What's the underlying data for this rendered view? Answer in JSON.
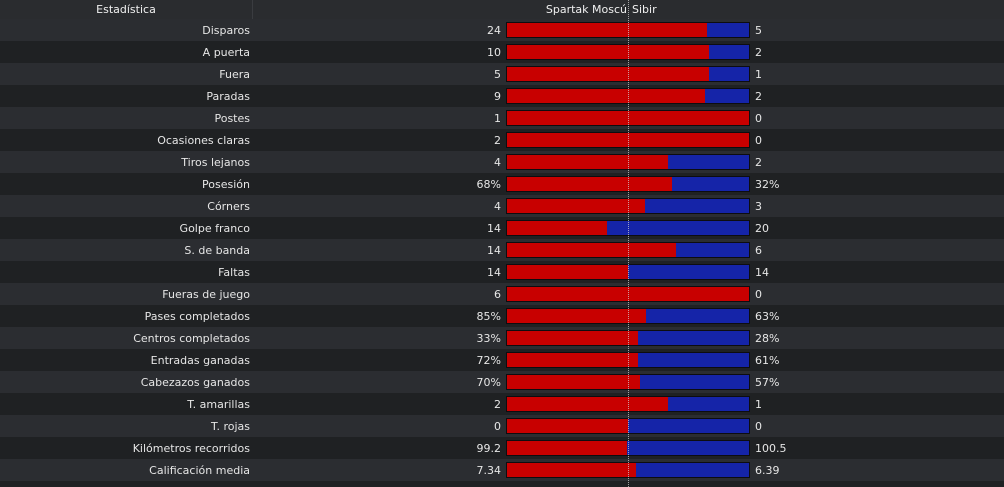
{
  "header": {
    "stat_label": "Estadística",
    "home_team": "Spartak Moscú",
    "away_team": "Sibir"
  },
  "colors": {
    "home": "#c80000",
    "away": "#1524a8"
  },
  "stats": [
    {
      "label": "Disparos",
      "home": "24",
      "away": "5",
      "home_share": 0.827
    },
    {
      "label": "A puerta",
      "home": "10",
      "away": "2",
      "home_share": 0.833
    },
    {
      "label": "Fuera",
      "home": "5",
      "away": "1",
      "home_share": 0.833
    },
    {
      "label": "Paradas",
      "home": "9",
      "away": "2",
      "home_share": 0.818
    },
    {
      "label": "Postes",
      "home": "1",
      "away": "0",
      "home_share": 1.0
    },
    {
      "label": "Ocasiones claras",
      "home": "2",
      "away": "0",
      "home_share": 1.0
    },
    {
      "label": "Tiros lejanos",
      "home": "4",
      "away": "2",
      "home_share": 0.667
    },
    {
      "label": "Posesión",
      "home": "68%",
      "away": "32%",
      "home_share": 0.68
    },
    {
      "label": "Córners",
      "home": "4",
      "away": "3",
      "home_share": 0.571
    },
    {
      "label": "Golpe franco",
      "home": "14",
      "away": "20",
      "home_share": 0.412
    },
    {
      "label": "S. de banda",
      "home": "14",
      "away": "6",
      "home_share": 0.7
    },
    {
      "label": "Faltas",
      "home": "14",
      "away": "14",
      "home_share": 0.5
    },
    {
      "label": "Fueras de juego",
      "home": "6",
      "away": "0",
      "home_share": 1.0
    },
    {
      "label": "Pases completados",
      "home": "85%",
      "away": "63%",
      "home_share": 0.574
    },
    {
      "label": "Centros completados",
      "home": "33%",
      "away": "28%",
      "home_share": 0.541
    },
    {
      "label": "Entradas ganadas",
      "home": "72%",
      "away": "61%",
      "home_share": 0.541
    },
    {
      "label": "Cabezazos ganados",
      "home": "70%",
      "away": "57%",
      "home_share": 0.551
    },
    {
      "label": "T. amarillas",
      "home": "2",
      "away": "1",
      "home_share": 0.667
    },
    {
      "label": "T. rojas",
      "home": "0",
      "away": "0",
      "home_share": 0.5
    },
    {
      "label": "Kilómetros recorridos",
      "home": "99.2",
      "away": "100.5",
      "home_share": 0.497
    },
    {
      "label": "Calificación media",
      "home": "7.34",
      "away": "6.39",
      "home_share": 0.535
    }
  ]
}
